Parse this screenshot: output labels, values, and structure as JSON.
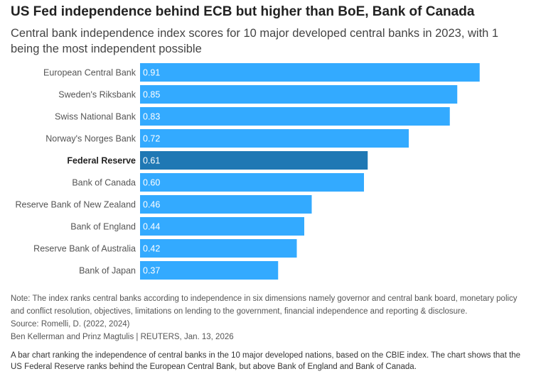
{
  "title": "US Fed independence behind ECB but higher than BoE, Bank of Canada",
  "subtitle": "Central bank independence index scores for 10 major developed central banks in 2023, with 1 being the most independent possible",
  "note": "Note: The index ranks central banks according to independence in six dimensions namely governor and central bank board, monetary policy and conflict resolution, objectives, limitations on lending to the government, financial independence and reporting & disclosure.",
  "source": "Source: Romelli, D. (2022, 2024)",
  "credit": "Ben Kellerman and Prinz Magtulis | REUTERS, Jan. 13, 2026",
  "description": "A bar chart ranking the independence of central banks in the 10 major developed nations, based on the CBIE index. The chart shows that the US Federal Reserve ranks behind the European Central Bank, but above Bank of England and Bank of Canada.",
  "colors": {
    "bar": "#33aaff",
    "highlight_bar": "#1f78b4",
    "bar_label": "#ffffff",
    "category_label": "#555555"
  },
  "chart_data": {
    "type": "bar",
    "orientation": "horizontal",
    "categories": [
      "European Central Bank",
      "Sweden's Riksbank",
      "Swiss National Bank",
      "Norway's Norges Bank",
      "Federal Reserve",
      "Bank of Canada",
      "Reserve Bank of New Zealand",
      "Bank of England",
      "Reserve Bank of Australia",
      "Bank of Japan"
    ],
    "values": [
      0.91,
      0.85,
      0.83,
      0.72,
      0.61,
      0.6,
      0.46,
      0.44,
      0.42,
      0.37
    ],
    "value_labels": [
      "0.91",
      "0.85",
      "0.83",
      "0.72",
      "0.61",
      "0.60",
      "0.46",
      "0.44",
      "0.42",
      "0.37"
    ],
    "highlight": "Federal Reserve",
    "xlim": [
      0,
      1
    ],
    "grid": false,
    "legend": "none"
  }
}
